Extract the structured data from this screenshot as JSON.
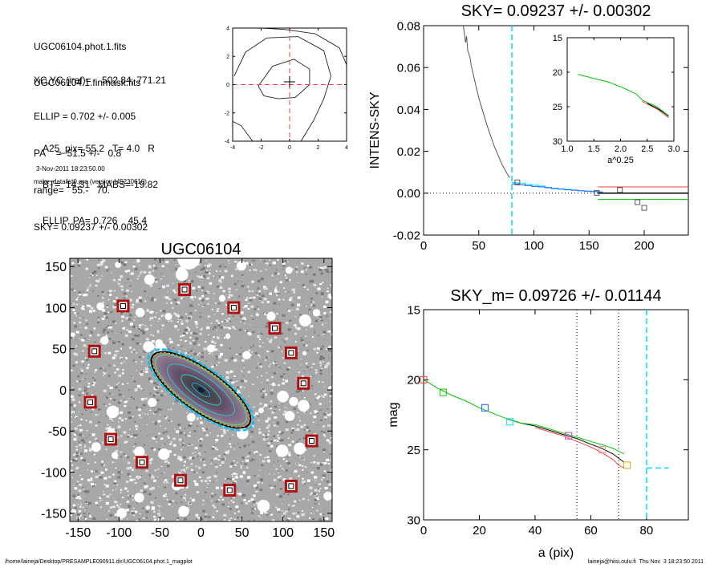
{
  "info": {
    "files": [
      "UGC06104.phot.1.fits",
      "UGC06104.1.finmask.fits"
    ],
    "params": [
      "XC,YC (iraf)=    502.84, 771.21",
      "ELLIP = 0.702 +/- 0.005",
      "PA    =  51.5 +/-   0.8",
      "range=   55.-   70.",
      "SKY= 0.09237 +/- 0.00302"
    ],
    "results": [
      "A25_pix= 55.2   T= 4.0   R",
      "BT=  14.31   MABS=-19.82",
      "ELLIP, PA= 0.726    45.4"
    ],
    "date": "3-Nov-2011 18:23:50.00",
    "program": "make_datalist0.pro (version HS230610)"
  },
  "footer": {
    "left": "/home/laineja/Desktop/PRESAMPLE090911.dir/UGC06104.phot.1_magplot",
    "right": "laineja@hiisi.oulu.fi  Thu Nov  3 18:23:50 2011"
  },
  "colors": {
    "cyan": "#00ddff",
    "red": "#ff4040",
    "green": "#00c800",
    "blue": "#1a5fff",
    "gray": "#555555",
    "black": "#000000"
  },
  "chart_data": [
    {
      "type": "contour",
      "xlim": [
        -4,
        4
      ],
      "ylim": [
        -4,
        4
      ],
      "xticks": [
        -4,
        -2,
        0,
        2,
        4
      ],
      "yticks": [
        -4,
        -2,
        0,
        2,
        4
      ],
      "tick_labels_x": [
        "-4",
        "-2",
        "0",
        "2",
        "4"
      ],
      "tick_labels_y": [
        "-4",
        "-2",
        "0",
        "2",
        "4"
      ],
      "contours": [
        [
          [
            -2.2,
            -0.1
          ],
          [
            -1.2,
            1.3
          ],
          [
            0.3,
            1.8
          ],
          [
            1.4,
            1.1
          ],
          [
            1.4,
            0.0
          ],
          [
            0.4,
            -0.9
          ],
          [
            -0.8,
            -1.0
          ],
          [
            -1.8,
            -0.8
          ],
          [
            -2.2,
            -0.1
          ]
        ],
        [
          [
            -3.9,
            0.6
          ],
          [
            -3.1,
            2.3
          ],
          [
            -1.6,
            3.3
          ],
          [
            0.6,
            3.4
          ],
          [
            2.4,
            2.4
          ],
          [
            2.9,
            0.6
          ],
          [
            2.4,
            -1.0
          ],
          [
            1.7,
            -2.5
          ],
          [
            0.8,
            -4.0
          ]
        ],
        [
          [
            -1.9,
            4.0
          ],
          [
            -0.3,
            3.9
          ],
          [
            1.8,
            3.6
          ],
          [
            3.5,
            2.6
          ],
          [
            4.0,
            1.4
          ]
        ],
        [
          [
            -4.0,
            -2.6
          ],
          [
            -3.4,
            -2.9
          ],
          [
            -2.6,
            -4.0
          ]
        ]
      ],
      "center_cross": [
        0,
        0.2
      ]
    },
    {
      "type": "line",
      "title": "SKY= 0.09237 +/- 0.00302",
      "ylabel": "INTENS-SKY",
      "xlim": [
        0,
        240
      ],
      "ylim": [
        -0.02,
        0.08
      ],
      "xticks": [
        0,
        50,
        100,
        150,
        200
      ],
      "yticks": [
        -0.02,
        0.0,
        0.02,
        0.04,
        0.06,
        0.08
      ],
      "tick_labels_x": [
        "0",
        "50",
        "100",
        "150",
        "200"
      ],
      "tick_labels_y": [
        "-0.02",
        "0.00",
        "0.02",
        "0.04",
        "0.06",
        "0.08"
      ],
      "profile": {
        "x": [
          36,
          37,
          38,
          39,
          40,
          41,
          42,
          43,
          44,
          46,
          48,
          50,
          52,
          54,
          56,
          58,
          60,
          62,
          64,
          66,
          68,
          70,
          72,
          74,
          76,
          78
        ],
        "y": [
          0.08,
          0.076,
          0.072,
          0.075,
          0.068,
          0.0665,
          0.065,
          0.0615,
          0.059,
          0.0545,
          0.05,
          0.0455,
          0.042,
          0.0385,
          0.035,
          0.0315,
          0.0285,
          0.0255,
          0.0225,
          0.02,
          0.0175,
          0.015,
          0.0128,
          0.011,
          0.009,
          0.0075
        ]
      },
      "steps_cyan": {
        "x": [
          80,
          86,
          92,
          98,
          104,
          110,
          116,
          122,
          128,
          134,
          140,
          146,
          152,
          158
        ],
        "y": [
          0.005,
          0.0048,
          0.0042,
          0.0038,
          0.0034,
          0.0028,
          0.0024,
          0.002,
          0.0018,
          0.0015,
          0.0012,
          0.001,
          0.0008,
          0.0006
        ]
      },
      "steps_blue": {
        "x": [
          80,
          86,
          92,
          98,
          104,
          110,
          116,
          122,
          128,
          134,
          140,
          146,
          152,
          158
        ],
        "y": [
          0.0044,
          0.004,
          0.0036,
          0.0032,
          0.003,
          0.0026,
          0.0022,
          0.0019,
          0.0016,
          0.0014,
          0.0012,
          0.001,
          0.0008,
          0.0006
        ]
      },
      "squares": {
        "x": [
          85,
          157,
          178,
          194,
          200
        ],
        "y": [
          0.0052,
          0.0002,
          0.0015,
          -0.0043,
          -0.007
        ]
      },
      "sky_lines": {
        "x_range": [
          158,
          240
        ],
        "black": 0.0,
        "red": 0.003,
        "green": -0.003
      },
      "zero_line": 0.0,
      "vline_x": 80,
      "inset": {
        "xlabel": "a^0.25",
        "xlim": [
          1.0,
          3.0
        ],
        "ylim": [
          15,
          30
        ],
        "xticks": [
          1.0,
          1.5,
          2.0,
          2.5,
          3.0
        ],
        "yticks": [
          15,
          20,
          25,
          30
        ],
        "tick_labels_x": [
          "1.0",
          "1.5",
          "2.0",
          "2.5",
          "3.0"
        ],
        "tick_labels_y": [
          "15",
          "20",
          "25",
          "30"
        ],
        "green": {
          "x": [
            1.2,
            1.4,
            1.6,
            1.8,
            2.0,
            2.2,
            2.3,
            2.4,
            2.5,
            2.6,
            2.7,
            2.8,
            2.9
          ],
          "y": [
            20.3,
            20.7,
            21.1,
            21.5,
            22.1,
            22.8,
            23.2,
            24.0,
            24.4,
            24.7,
            25.1,
            25.7,
            26.3
          ]
        },
        "red": {
          "x": [
            2.4,
            2.5,
            2.6,
            2.7,
            2.8,
            2.9
          ],
          "y": [
            24.2,
            24.6,
            25.0,
            25.4,
            26.0,
            26.6
          ]
        },
        "black": {
          "x": [
            2.5,
            2.6,
            2.7,
            2.8,
            2.9
          ],
          "y": [
            24.5,
            24.9,
            25.3,
            25.8,
            26.4
          ]
        }
      }
    },
    {
      "type": "image",
      "title": "UGC06104",
      "xlim": [
        -160,
        160
      ],
      "ylim": [
        -160,
        160
      ],
      "xticks": [
        -150,
        -100,
        -50,
        0,
        50,
        100,
        150
      ],
      "yticks": [
        -150,
        -100,
        -50,
        0,
        50,
        100,
        150
      ],
      "tick_labels_x": [
        "-150",
        "-100",
        "-50",
        "0",
        "50",
        "100",
        "150"
      ],
      "tick_labels_y": [
        "-150",
        "-100",
        "-50",
        "0",
        "50",
        "100",
        "150"
      ],
      "galaxy": {
        "center": [
          0,
          0
        ],
        "semi_major": 72,
        "ellipticity": 0.7,
        "pa_deg": 45.4
      },
      "isophote_scales": [
        0.18,
        0.4,
        0.68,
        0.92
      ],
      "mask_squares": {
        "x": [
          -20,
          -95,
          40,
          -130,
          90,
          110,
          125,
          -135,
          -110,
          -72,
          -25,
          35,
          110,
          135
        ],
        "y": [
          122,
          102,
          100,
          47,
          75,
          45,
          8,
          -15,
          -60,
          -88,
          -110,
          -122,
          -117,
          -62
        ]
      }
    },
    {
      "type": "line",
      "title": "SKY_m=  0.09726 +/- 0.01144",
      "xlabel": "a (pix)",
      "ylabel": "mag",
      "xlim": [
        0,
        95
      ],
      "ylim": [
        30,
        15
      ],
      "xticks": [
        0,
        20,
        40,
        60,
        80
      ],
      "yticks": [
        15,
        20,
        25,
        30
      ],
      "tick_labels_x": [
        "0",
        "20",
        "40",
        "60",
        "80"
      ],
      "tick_labels_y": [
        "15",
        "20",
        "25",
        "30"
      ],
      "green": {
        "x": [
          0,
          5,
          10,
          15,
          20,
          25,
          30,
          35,
          40,
          45,
          50,
          55,
          60,
          65,
          68,
          70,
          72
        ],
        "y": [
          20.0,
          20.6,
          21.1,
          21.5,
          22.0,
          22.4,
          22.8,
          23.1,
          23.2,
          23.5,
          23.8,
          24.1,
          24.4,
          24.7,
          24.9,
          25.1,
          25.3
        ]
      },
      "black": {
        "x": [
          30,
          35,
          40,
          45,
          50,
          55,
          60,
          64,
          68,
          70,
          72
        ],
        "y": [
          22.8,
          23.1,
          23.3,
          23.6,
          23.9,
          24.2,
          24.6,
          24.9,
          25.3,
          25.6,
          25.9
        ]
      },
      "red": {
        "x": [
          40,
          45,
          50,
          55,
          60,
          64,
          68,
          70,
          72
        ],
        "y": [
          23.4,
          23.7,
          24.0,
          24.4,
          24.8,
          25.2,
          25.7,
          26.1,
          26.3
        ]
      },
      "squares": {
        "x": [
          0,
          7,
          22,
          31,
          52,
          64,
          73
        ],
        "y": [
          20.0,
          20.9,
          22.0,
          23.0,
          24.0,
          25.0,
          26.1
        ],
        "colors": [
          "#ff4040",
          "#00c800",
          "#1a5fff",
          "#00ddff",
          "#cc44cc",
          "#ff8888",
          "#ddaa00"
        ]
      },
      "vlines_dotted": [
        55,
        70
      ],
      "vline_cyan": 80,
      "sky_hline": {
        "x": [
          80,
          88
        ],
        "y": 26.3
      }
    }
  ]
}
